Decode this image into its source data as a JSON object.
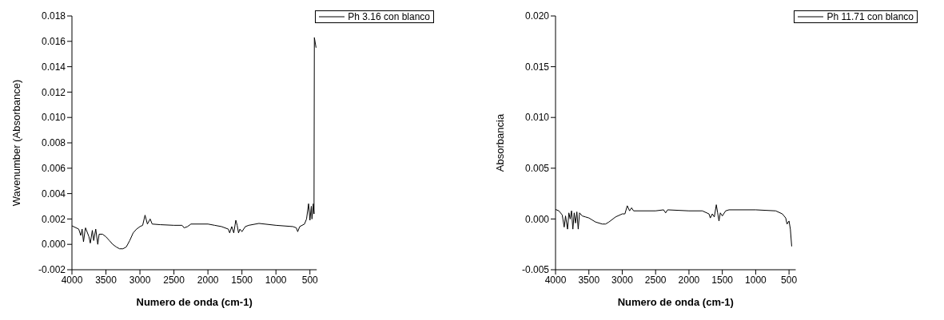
{
  "chart_data": [
    {
      "type": "line",
      "xlabel": "Numero de onda (cm-1)",
      "ylabel": "Wavenumber (Absorbance)",
      "legend": "top right",
      "grid": false,
      "marker": "none",
      "line_style": "solid",
      "xlim": [
        4000,
        400
      ],
      "xticks": [
        4000,
        3500,
        3000,
        2500,
        2000,
        1500,
        1000,
        500
      ],
      "ylim": [
        -0.002,
        0.018
      ],
      "yticks": [
        {
          "value": -0.002,
          "label": "-0.002"
        },
        {
          "value": 0,
          "label": "0.000"
        },
        {
          "value": 0.002,
          "label": "0.002"
        },
        {
          "value": 0.004,
          "label": "0.004"
        },
        {
          "value": 0.006,
          "label": "0.006"
        },
        {
          "value": 0.008,
          "label": "0.008"
        },
        {
          "value": 0.01,
          "label": "0.010"
        },
        {
          "value": 0.012,
          "label": "0.012"
        },
        {
          "value": 0.014,
          "label": "0.014"
        },
        {
          "value": 0.016,
          "label": "0.016"
        },
        {
          "value": 0.018,
          "label": "0.018"
        }
      ],
      "series": [
        {
          "name": "Ph 3.16 con blanco",
          "color": "#000000",
          "x": [
            4000,
            3900,
            3870,
            3850,
            3830,
            3810,
            3800,
            3750,
            3730,
            3700,
            3680,
            3650,
            3620,
            3600,
            3550,
            3500,
            3450,
            3400,
            3350,
            3300,
            3250,
            3200,
            3150,
            3100,
            3050,
            3000,
            2960,
            2925,
            2890,
            2850,
            2820,
            2700,
            2500,
            2380,
            2350,
            2300,
            2250,
            2000,
            1900,
            1800,
            1700,
            1680,
            1650,
            1620,
            1590,
            1570,
            1550,
            1530,
            1500,
            1450,
            1400,
            1250,
            1000,
            750,
            700,
            680,
            650,
            580,
            550,
            520,
            500,
            480,
            470,
            450,
            440,
            435,
            410
          ],
          "values": [
            0.00146,
            0.0012,
            0.0007,
            0.0012,
            0.0002,
            0.001,
            0.0013,
            0.0006,
            0.0001,
            0.0011,
            0.0003,
            0.0012,
            0.0,
            0.0008,
            0.0008,
            0.0006,
            0.0003,
            0.0,
            -0.0002,
            -0.00035,
            -0.00035,
            -0.0002,
            0.0003,
            0.0009,
            0.0012,
            0.0014,
            0.0015,
            0.0023,
            0.0016,
            0.002,
            0.0016,
            0.00155,
            0.0015,
            0.0015,
            0.0013,
            0.0014,
            0.0016,
            0.0016,
            0.0015,
            0.0014,
            0.0012,
            0.0009,
            0.0014,
            0.0009,
            0.0019,
            0.0015,
            0.0009,
            0.0012,
            0.001,
            0.0014,
            0.0015,
            0.00165,
            0.0015,
            0.0014,
            0.0013,
            0.001,
            0.0014,
            0.0016,
            0.002,
            0.0032,
            0.0019,
            0.003,
            0.002,
            0.0032,
            0.0024,
            0.0163,
            0.0155
          ]
        }
      ]
    },
    {
      "type": "line",
      "xlabel": "Numero de onda (cm-1)",
      "ylabel": "Absorbancia",
      "legend": "top right",
      "grid": false,
      "marker": "none",
      "line_style": "solid",
      "xlim": [
        4000,
        400
      ],
      "xticks": [
        4000,
        3500,
        3000,
        2500,
        2000,
        1500,
        1000,
        500
      ],
      "ylim": [
        -0.005,
        0.02
      ],
      "yticks": [
        {
          "value": -0.005,
          "label": "-0.005"
        },
        {
          "value": 0,
          "label": "0.000"
        },
        {
          "value": 0.005,
          "label": "0.005"
        },
        {
          "value": 0.01,
          "label": "0.010"
        },
        {
          "value": 0.015,
          "label": "0.015"
        },
        {
          "value": 0.02,
          "label": "0.020"
        }
      ],
      "series": [
        {
          "name": "Ph 11.71 con blanco",
          "color": "#000000",
          "x": [
            4000,
            3950,
            3900,
            3870,
            3850,
            3820,
            3800,
            3780,
            3760,
            3740,
            3720,
            3700,
            3680,
            3660,
            3640,
            3600,
            3550,
            3500,
            3450,
            3400,
            3300,
            3250,
            3200,
            3100,
            3000,
            2960,
            2925,
            2890,
            2860,
            2830,
            2500,
            2380,
            2350,
            2320,
            2000,
            1800,
            1700,
            1680,
            1650,
            1620,
            1590,
            1570,
            1550,
            1530,
            1500,
            1450,
            1400,
            1000,
            700,
            600,
            550,
            530,
            500,
            480,
            460
          ],
          "values": [
            0.00094,
            0.0008,
            0.0004,
            -0.0008,
            0.0003,
            -0.001,
            0.0006,
            0.0,
            0.0008,
            -0.001,
            0.0006,
            -0.0004,
            0.0007,
            -0.001,
            0.0006,
            0.0003,
            0.0002,
            0.0001,
            -0.0001,
            -0.0003,
            -0.0005,
            -0.0005,
            -0.0003,
            0.0002,
            0.0005,
            0.0005,
            0.0013,
            0.0008,
            0.0011,
            0.0008,
            0.0008,
            0.0009,
            0.0006,
            0.0009,
            0.0008,
            0.0008,
            0.0005,
            0.0001,
            0.0005,
            0.0002,
            0.0014,
            0.0006,
            -0.0002,
            0.0006,
            0.0003,
            0.0008,
            0.0009,
            0.0009,
            0.0008,
            0.0005,
            0.0001,
            -0.0005,
            -0.0002,
            -0.001,
            -0.0027
          ]
        }
      ]
    }
  ]
}
